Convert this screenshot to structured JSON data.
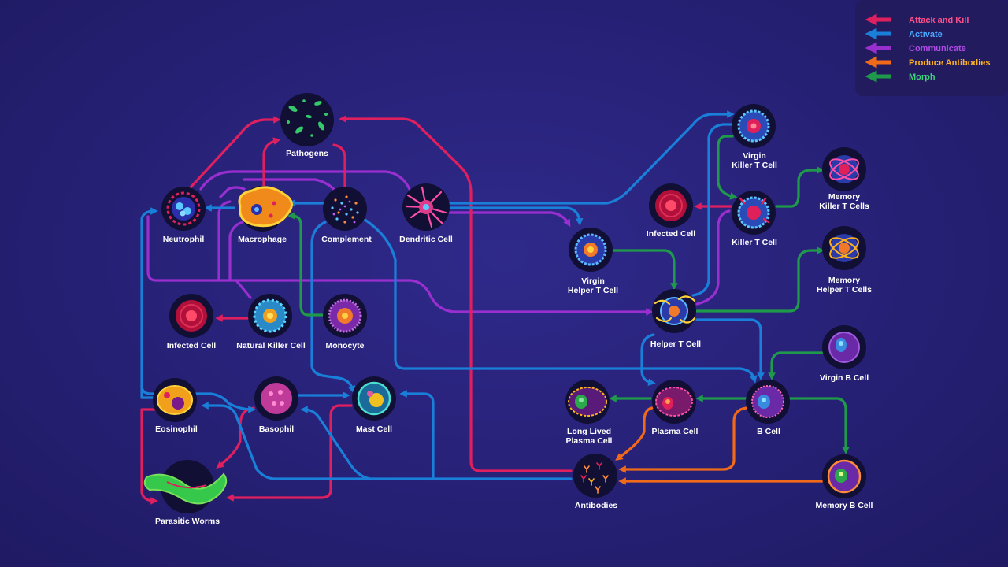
{
  "colors": {
    "attack": "#e01f5f",
    "activate": "#1a7fd8",
    "communicate": "#9a2fd0",
    "antibodies": "#f06a1a",
    "morph": "#1f9a4a",
    "legend_bg": "#221c5e"
  },
  "legend": [
    {
      "key": "attack",
      "label": "Attack and Kill",
      "text_color": "#ff4f8a"
    },
    {
      "key": "activate",
      "label": "Activate",
      "text_color": "#4aa8ff"
    },
    {
      "key": "communicate",
      "label": "Communicate",
      "text_color": "#b04ae6"
    },
    {
      "key": "antibodies",
      "label": "Produce Antibodies",
      "text_color": "#ffb21f"
    },
    {
      "key": "morph",
      "label": "Morph",
      "text_color": "#3fd07a"
    }
  ],
  "nodes": [
    {
      "id": "pathogens",
      "label": [
        "Pathogens"
      ],
      "icon": "pathogens-icon"
    },
    {
      "id": "neutrophil",
      "label": [
        "Neutrophil"
      ],
      "icon": "neutrophil-icon"
    },
    {
      "id": "macrophage",
      "label": [
        "Macrophage"
      ],
      "icon": "macrophage-icon"
    },
    {
      "id": "complement",
      "label": [
        "Complement"
      ],
      "icon": "complement-icon"
    },
    {
      "id": "dendritic",
      "label": [
        "Dendritic Cell"
      ],
      "icon": "dendritic-cell-icon"
    },
    {
      "id": "infected1",
      "label": [
        "Infected Cell"
      ],
      "icon": "infected-cell-icon"
    },
    {
      "id": "nk",
      "label": [
        "Natural Killer Cell"
      ],
      "icon": "natural-killer-cell-icon"
    },
    {
      "id": "monocyte",
      "label": [
        "Monocyte"
      ],
      "icon": "monocyte-icon"
    },
    {
      "id": "eosinophil",
      "label": [
        "Eosinophil"
      ],
      "icon": "eosinophil-icon"
    },
    {
      "id": "basophil",
      "label": [
        "Basophil"
      ],
      "icon": "basophil-icon"
    },
    {
      "id": "mast",
      "label": [
        "Mast Cell"
      ],
      "icon": "mast-cell-icon"
    },
    {
      "id": "worms",
      "label": [
        "Parasitic Worms"
      ],
      "icon": "parasitic-worm-icon"
    },
    {
      "id": "virginhelper",
      "label": [
        "Virgin",
        "Helper T Cell"
      ],
      "icon": "virgin-helper-t-cell-icon"
    },
    {
      "id": "helper",
      "label": [
        "Helper T Cell"
      ],
      "icon": "helper-t-cell-icon"
    },
    {
      "id": "virginkiller",
      "label": [
        "Virgin",
        "Killer T Cell"
      ],
      "icon": "virgin-killer-t-cell-icon"
    },
    {
      "id": "killer",
      "label": [
        "Killer T Cell"
      ],
      "icon": "killer-t-cell-icon"
    },
    {
      "id": "infected2",
      "label": [
        "Infected Cell"
      ],
      "icon": "infected-cell-icon"
    },
    {
      "id": "memkiller",
      "label": [
        "Memory",
        "Killer T Cells"
      ],
      "icon": "memory-killer-t-cell-icon"
    },
    {
      "id": "memhelper",
      "label": [
        "Memory",
        "Helper T Cells"
      ],
      "icon": "memory-helper-t-cell-icon"
    },
    {
      "id": "virginb",
      "label": [
        "Virgin B Cell"
      ],
      "icon": "virgin-b-cell-icon"
    },
    {
      "id": "bcell",
      "label": [
        "B Cell"
      ],
      "icon": "b-cell-icon"
    },
    {
      "id": "plasma",
      "label": [
        "Plasma Cell"
      ],
      "icon": "plasma-cell-icon"
    },
    {
      "id": "longplasma",
      "label": [
        "Long Lived",
        "Plasma Cell"
      ],
      "icon": "long-lived-plasma-cell-icon"
    },
    {
      "id": "antibodies",
      "label": [
        "Antibodies"
      ],
      "icon": "antibodies-icon"
    },
    {
      "id": "memb",
      "label": [
        "Memory B Cell"
      ],
      "icon": "memory-b-cell-icon"
    }
  ]
}
